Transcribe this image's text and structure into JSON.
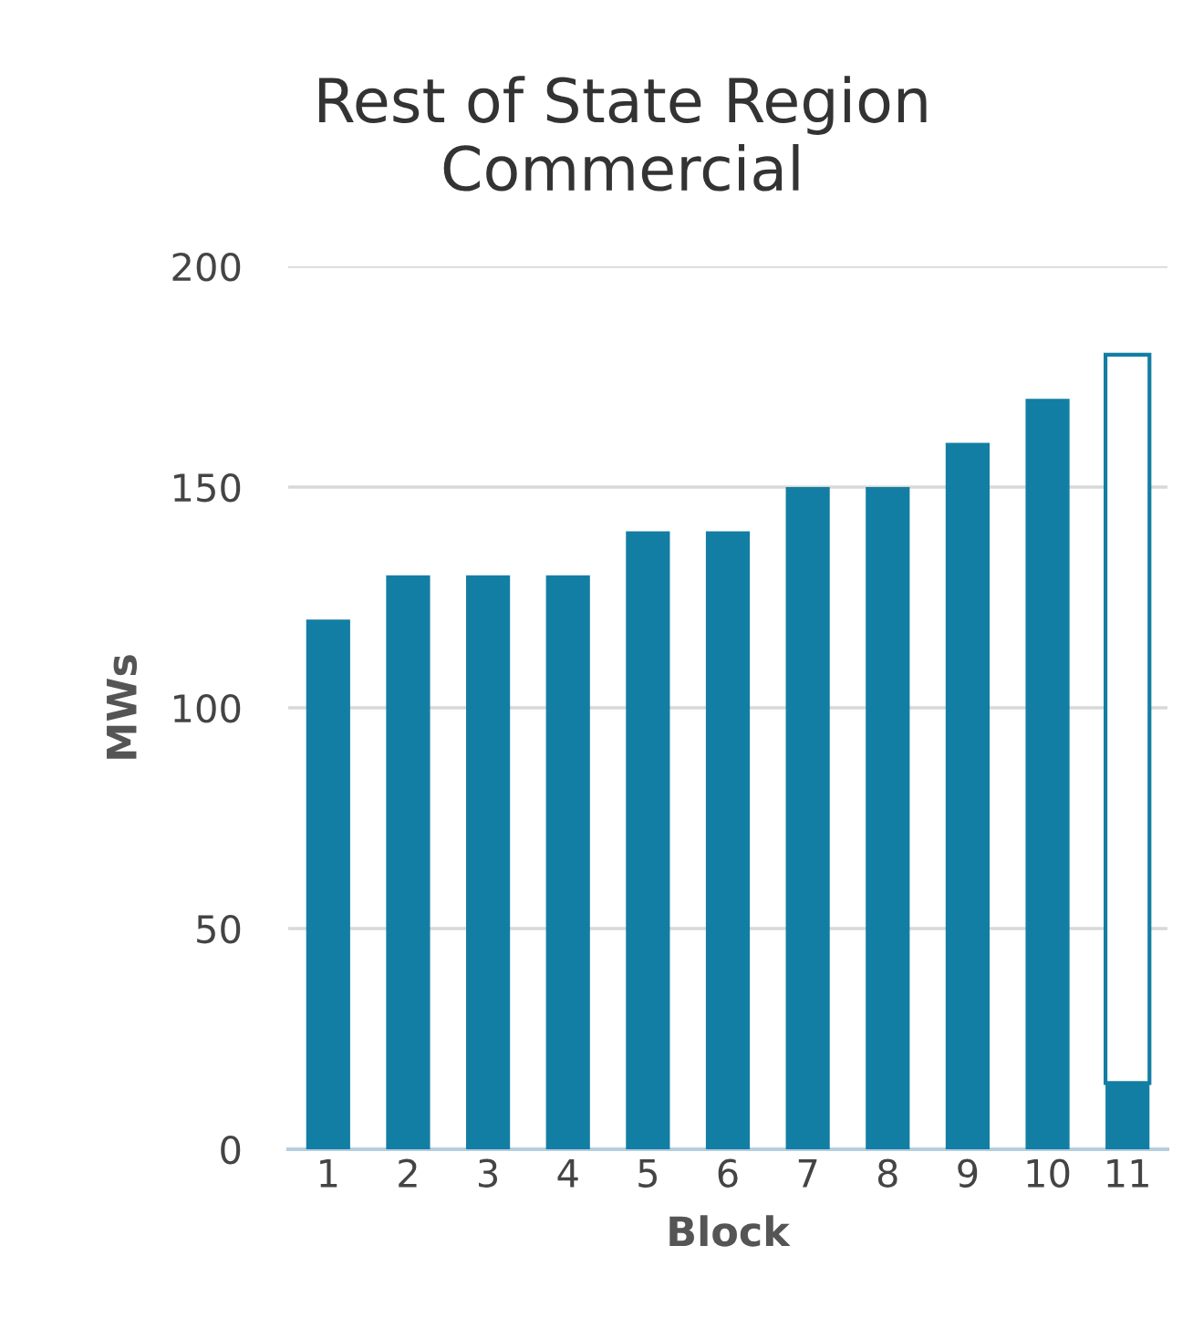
{
  "chart_data": {
    "type": "bar",
    "title": "Rest of State Region\nCommercial",
    "xlabel": "Block",
    "ylabel": "MWs",
    "categories": [
      "1",
      "2",
      "3",
      "4",
      "5",
      "6",
      "7",
      "8",
      "9",
      "10",
      "11"
    ],
    "stacked": true,
    "series": [
      {
        "color": "#137ea3",
        "values": [
          120,
          130,
          130,
          130,
          140,
          140,
          150,
          150,
          160,
          170,
          15
        ]
      },
      {
        "color": "#ffffff",
        "values": [
          null,
          null,
          null,
          null,
          null,
          null,
          null,
          null,
          null,
          null,
          165
        ]
      }
    ],
    "ylim": [
      0,
      200
    ],
    "yticks": [
      0,
      50,
      100,
      150,
      200
    ],
    "grid": "y"
  }
}
